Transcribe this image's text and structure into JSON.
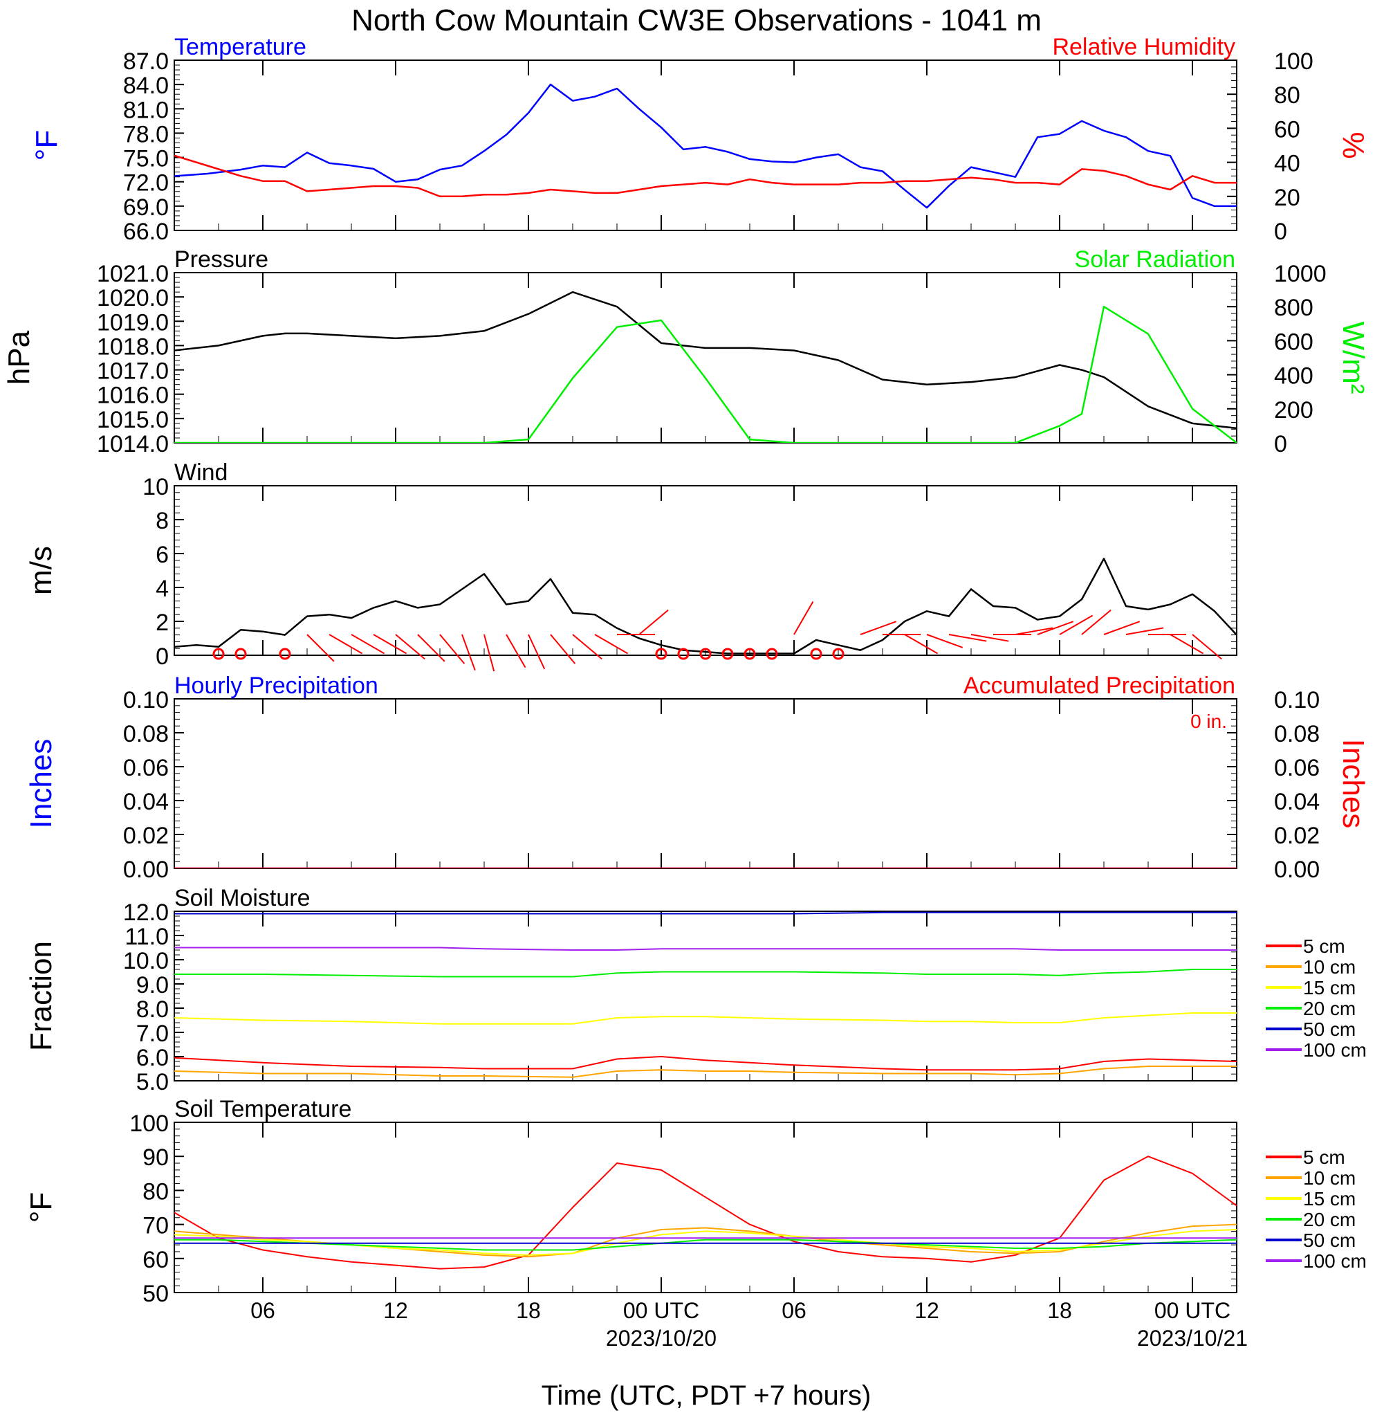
{
  "title": "North Cow Mountain CW3E Observations - 1041 m",
  "x_axis": {
    "label": "Time (UTC, PDT +7 hours)",
    "tick_labels": [
      "06",
      "12",
      "18",
      "00 UTC",
      "06",
      "12",
      "18",
      "00 UTC"
    ],
    "date_labels": [
      "2023/10/20",
      "2023/10/21"
    ],
    "range_hours_utc": [
      -22,
      26
    ]
  },
  "colors": {
    "temperature": "#0000ff",
    "humidity": "#ff0000",
    "pressure": "#000000",
    "solar": "#00ee00",
    "wind_speed": "#000000",
    "wind_barb": "#ff0000",
    "hourly_precip": "#0000ff",
    "accum_precip": "#ff0000",
    "depth_5cm": "#ff0000",
    "depth_10cm": "#ffa500",
    "depth_15cm": "#ffff00",
    "depth_20cm": "#00ee00",
    "depth_50cm": "#0000cd",
    "depth_100cm": "#a020f0"
  },
  "chart_data": [
    {
      "type": "line",
      "panel": "temperature-humidity",
      "left_title": "Temperature",
      "right_title": "Relative Humidity",
      "ylabel_left": "°F",
      "ylabel_right": "%",
      "ylim_left": [
        66,
        87
      ],
      "ylim_right": [
        0,
        100
      ],
      "y_ticks_left": [
        "87.0",
        "84.0",
        "81.0",
        "78.0",
        "75.0",
        "72.0",
        "69.0",
        "66.0"
      ],
      "y_ticks_right": [
        "100",
        "80",
        "60",
        "40",
        "20",
        "0"
      ],
      "x_hours": [
        -22,
        -20.5,
        -19,
        -18,
        -17,
        -16,
        -15,
        -14,
        -13,
        -12,
        -11,
        -10,
        -9,
        -8,
        -7,
        -6,
        -5,
        -4,
        -3,
        -2,
        -1,
        0,
        1,
        2,
        3,
        4,
        5,
        6,
        7,
        8,
        9,
        10,
        11,
        12,
        13,
        14,
        15,
        16,
        17,
        18,
        19,
        20,
        21,
        22,
        23,
        24,
        25,
        26
      ],
      "series": [
        {
          "name": "Temperature",
          "axis": "left",
          "color": "temperature",
          "values": [
            72.7,
            73,
            73.5,
            74,
            73.8,
            75.6,
            74.3,
            74,
            73.6,
            72,
            72.3,
            73.5,
            74,
            75.8,
            77.8,
            80.5,
            84,
            82,
            82.5,
            83.5,
            81,
            78.7,
            76,
            76.3,
            75.7,
            74.8,
            74.5,
            74.4,
            75,
            75.4,
            73.8,
            73.3,
            71,
            68.8,
            71.5,
            73.8,
            73.2,
            72.6,
            77.5,
            77.9,
            79.5,
            78.3,
            77.5,
            75.8,
            75.2,
            70,
            69,
            69
          ]
        },
        {
          "name": "Relative Humidity",
          "axis": "right",
          "color": "humidity",
          "values": [
            44,
            38,
            32,
            29,
            29,
            23,
            24,
            25,
            26,
            26,
            25,
            20,
            20,
            21,
            21,
            22,
            24,
            23,
            22,
            22,
            24,
            26,
            27,
            28,
            27,
            30,
            28,
            27,
            27,
            27,
            28,
            28,
            29,
            29,
            30,
            31,
            30,
            28,
            28,
            27,
            36,
            35,
            32,
            27,
            24,
            32,
            28,
            28
          ]
        }
      ]
    },
    {
      "type": "line",
      "panel": "pressure-solar",
      "left_title": "Pressure",
      "right_title": "Solar Radiation",
      "ylabel_left": "hPa",
      "ylabel_right": "W/m²",
      "ylim_left": [
        1014,
        1021
      ],
      "ylim_right": [
        0,
        1000
      ],
      "y_ticks_left": [
        "1021.0",
        "1020.0",
        "1019.0",
        "1018.0",
        "1017.0",
        "1016.0",
        "1015.0",
        "1014.0"
      ],
      "y_ticks_right": [
        "1000",
        "800",
        "600",
        "400",
        "200",
        "0"
      ],
      "x_hours": [
        -22,
        -20,
        -18,
        -17,
        -16,
        -14,
        -12,
        -10,
        -8,
        -6,
        -4,
        -2,
        0,
        2,
        4,
        6,
        8,
        10,
        12,
        14,
        16,
        18,
        19,
        20,
        22,
        24,
        26
      ],
      "series": [
        {
          "name": "Pressure",
          "axis": "left",
          "color": "pressure",
          "values": [
            1017.8,
            1018,
            1018.4,
            1018.5,
            1018.5,
            1018.4,
            1018.3,
            1018.4,
            1018.6,
            1019.3,
            1020.2,
            1019.6,
            1018.1,
            1017.9,
            1017.9,
            1017.8,
            1017.4,
            1016.6,
            1016.4,
            1016.5,
            1016.7,
            1017.2,
            1017,
            1016.7,
            1015.5,
            1014.8,
            1014.6
          ]
        },
        {
          "name": "Solar Radiation",
          "axis": "right",
          "color": "solar",
          "values": [
            0,
            0,
            0,
            0,
            0,
            0,
            0,
            0,
            0,
            20,
            380,
            680,
            720,
            380,
            20,
            0,
            0,
            0,
            0,
            0,
            0,
            100,
            170,
            800,
            640,
            200,
            0
          ]
        }
      ]
    },
    {
      "type": "line",
      "panel": "wind",
      "left_title": "Wind",
      "ylabel_left": "m/s",
      "ylim_left": [
        0,
        10
      ],
      "y_ticks_left": [
        "10",
        "8",
        "6",
        "4",
        "2",
        "0"
      ],
      "x_hours": [
        -22,
        -21,
        -20,
        -19,
        -18,
        -17,
        -16,
        -15,
        -14,
        -13,
        -12,
        -11,
        -10,
        -9,
        -8,
        -7,
        -6,
        -5,
        -4,
        -3,
        -2,
        -1,
        0,
        1,
        2,
        3,
        4,
        5,
        6,
        7,
        8,
        9,
        10,
        11,
        12,
        13,
        14,
        15,
        16,
        17,
        18,
        19,
        20,
        21,
        22,
        23,
        24,
        25,
        26
      ],
      "series": [
        {
          "name": "Wind Speed",
          "axis": "left",
          "color": "wind_speed",
          "values": [
            0.5,
            0.6,
            0.5,
            1.5,
            1.4,
            1.2,
            2.3,
            2.4,
            2.2,
            2.8,
            3.2,
            2.8,
            3.0,
            3.9,
            4.8,
            3.0,
            3.2,
            4.5,
            2.5,
            2.4,
            1.6,
            1.0,
            0.6,
            0.3,
            0.2,
            0.1,
            0.1,
            0.1,
            0.1,
            0.9,
            0.6,
            0.3,
            0.9,
            2.0,
            2.6,
            2.3,
            3.9,
            2.9,
            2.8,
            2.1,
            2.3,
            3.3,
            5.7,
            2.9,
            2.7,
            3.0,
            3.6,
            2.6,
            1.2
          ]
        }
      ],
      "barbs": {
        "color": "wind_barb",
        "calm_hours": [
          -20,
          -19,
          -17,
          0,
          1,
          2,
          3,
          4,
          5,
          7,
          8
        ],
        "barb_hours": [
          -16,
          -15,
          -14,
          -13,
          -12,
          -11,
          -10,
          -9,
          -8,
          -7,
          -6,
          -5,
          -4,
          -3,
          -2,
          -1,
          6,
          9,
          10,
          11,
          12,
          13,
          14,
          15,
          16,
          17,
          18,
          19,
          20,
          21,
          22,
          23,
          24
        ],
        "barb_angles_deg": [
          315,
          300,
          300,
          300,
          310,
          315,
          320,
          340,
          345,
          330,
          335,
          320,
          310,
          300,
          270,
          230,
          210,
          250,
          270,
          300,
          290,
          280,
          280,
          270,
          260,
          250,
          240,
          230,
          250,
          260,
          270,
          300,
          310
        ]
      }
    },
    {
      "type": "line",
      "panel": "precipitation",
      "left_title": "Hourly Precipitation",
      "right_title": "Accumulated Precipitation",
      "annotation": "0 in.",
      "ylabel_left": "Inches",
      "ylabel_right": "Inches",
      "ylim_left": [
        0,
        0.1
      ],
      "ylim_right": [
        0,
        0.1
      ],
      "y_ticks_left": [
        "0.10",
        "0.08",
        "0.06",
        "0.04",
        "0.02",
        "0.00"
      ],
      "y_ticks_right": [
        "0.10",
        "0.08",
        "0.06",
        "0.04",
        "0.02",
        "0.00"
      ],
      "x_hours": [
        -22,
        26
      ],
      "series": [
        {
          "name": "Hourly Precipitation",
          "axis": "left",
          "color": "hourly_precip",
          "values": [
            0,
            0
          ]
        },
        {
          "name": "Accumulated Precipitation",
          "axis": "right",
          "color": "accum_precip",
          "values": [
            0,
            0
          ]
        }
      ]
    },
    {
      "type": "line",
      "panel": "soil-moisture",
      "left_title": "Soil Moisture",
      "ylabel_left": "Fraction",
      "ylim_left": [
        5,
        12
      ],
      "y_ticks_left": [
        "12.0",
        "11.0",
        "10.0",
        "9.0",
        "8.0",
        "7.0",
        "6.0",
        "5.0"
      ],
      "legend": [
        "5 cm",
        "10 cm",
        "15 cm",
        "20 cm",
        "50 cm",
        "100 cm"
      ],
      "x_hours": [
        -22,
        -18,
        -14,
        -10,
        -8,
        -4,
        -2,
        0,
        2,
        4,
        6,
        10,
        12,
        14,
        16,
        18,
        20,
        22,
        24,
        26
      ],
      "series": [
        {
          "name": "5 cm",
          "axis": "left",
          "color": "depth_5cm",
          "values": [
            5.95,
            5.75,
            5.6,
            5.55,
            5.5,
            5.5,
            5.9,
            6.0,
            5.85,
            5.75,
            5.65,
            5.5,
            5.45,
            5.45,
            5.45,
            5.5,
            5.8,
            5.9,
            5.85,
            5.8
          ]
        },
        {
          "name": "10 cm",
          "axis": "left",
          "color": "depth_10cm",
          "values": [
            5.4,
            5.3,
            5.3,
            5.2,
            5.2,
            5.15,
            5.4,
            5.45,
            5.4,
            5.4,
            5.35,
            5.3,
            5.3,
            5.3,
            5.25,
            5.3,
            5.5,
            5.6,
            5.6,
            5.6
          ]
        },
        {
          "name": "15 cm",
          "axis": "left",
          "color": "depth_15cm",
          "values": [
            7.6,
            7.5,
            7.45,
            7.35,
            7.35,
            7.35,
            7.6,
            7.65,
            7.65,
            7.6,
            7.55,
            7.5,
            7.45,
            7.45,
            7.4,
            7.4,
            7.6,
            7.7,
            7.8,
            7.8
          ]
        },
        {
          "name": "20 cm",
          "axis": "left",
          "color": "depth_20cm",
          "values": [
            9.4,
            9.4,
            9.35,
            9.3,
            9.3,
            9.3,
            9.45,
            9.5,
            9.5,
            9.5,
            9.5,
            9.45,
            9.4,
            9.4,
            9.4,
            9.35,
            9.45,
            9.5,
            9.6,
            9.6
          ]
        },
        {
          "name": "50 cm",
          "axis": "left",
          "color": "depth_50cm",
          "values": [
            11.9,
            11.9,
            11.9,
            11.9,
            11.9,
            11.9,
            11.9,
            11.9,
            11.9,
            11.9,
            11.9,
            11.95,
            11.95,
            11.95,
            11.95,
            11.95,
            11.95,
            11.95,
            11.95,
            11.95
          ]
        },
        {
          "name": "100 cm",
          "axis": "left",
          "color": "depth_100cm",
          "values": [
            10.5,
            10.5,
            10.5,
            10.5,
            10.45,
            10.4,
            10.4,
            10.45,
            10.45,
            10.45,
            10.45,
            10.45,
            10.45,
            10.45,
            10.45,
            10.4,
            10.4,
            10.4,
            10.4,
            10.4
          ]
        }
      ]
    },
    {
      "type": "line",
      "panel": "soil-temperature",
      "left_title": "Soil Temperature",
      "ylabel_left": "°F",
      "ylim_left": [
        50,
        100
      ],
      "y_ticks_left": [
        "100",
        "90",
        "80",
        "70",
        "60",
        "50"
      ],
      "legend": [
        "5 cm",
        "10 cm",
        "15 cm",
        "20 cm",
        "50 cm",
        "100 cm"
      ],
      "x_hours": [
        -22,
        -20,
        -18,
        -16,
        -14,
        -12,
        -10,
        -8,
        -6,
        -4,
        -2,
        0,
        2,
        4,
        6,
        8,
        10,
        12,
        14,
        16,
        18,
        20,
        22,
        24,
        26
      ],
      "series": [
        {
          "name": "5 cm",
          "axis": "left",
          "color": "depth_5cm",
          "values": [
            73.5,
            66,
            62.5,
            60.5,
            59,
            58,
            57,
            57.5,
            61,
            75,
            88,
            86,
            78,
            70,
            65,
            62,
            60.5,
            60,
            59,
            61,
            66,
            83,
            90,
            85,
            75.5
          ]
        },
        {
          "name": "10 cm",
          "axis": "left",
          "color": "depth_10cm",
          "values": [
            68,
            67,
            66,
            65,
            64,
            63,
            62,
            61,
            60.5,
            61.5,
            66,
            68.5,
            69,
            68,
            66.5,
            65,
            64,
            63,
            62,
            61.5,
            62,
            65,
            67.5,
            69.5,
            70
          ]
        },
        {
          "name": "15 cm",
          "axis": "left",
          "color": "depth_15cm",
          "values": [
            67,
            66.5,
            65.5,
            65,
            64,
            63,
            62.5,
            61.5,
            61,
            61.5,
            64.5,
            67,
            68,
            67.5,
            66.5,
            65.5,
            64.5,
            63.5,
            63,
            62,
            62.5,
            64.5,
            66.5,
            68,
            68.5
          ]
        },
        {
          "name": "20 cm",
          "axis": "left",
          "color": "depth_20cm",
          "values": [
            65.5,
            65.5,
            65,
            64.5,
            64,
            63.5,
            63,
            62.5,
            62.5,
            62.5,
            63.5,
            64.5,
            65.5,
            65.5,
            65.5,
            65,
            64.5,
            64,
            63.5,
            63,
            63,
            63.5,
            64.5,
            65,
            65.5
          ]
        },
        {
          "name": "50 cm",
          "axis": "left",
          "color": "depth_50cm",
          "values": [
            64.5,
            64.5,
            64.5,
            64.5,
            64.5,
            64.5,
            64.5,
            64.5,
            64.5,
            64.5,
            64.5,
            64.5,
            64.5,
            64.5,
            64.5,
            64.5,
            64.5,
            64.5,
            64.5,
            64.5,
            64.5,
            64.5,
            64.5,
            64.5,
            64.5
          ]
        },
        {
          "name": "100 cm",
          "axis": "left",
          "color": "depth_100cm",
          "values": [
            66,
            66,
            66,
            66,
            66,
            66,
            66,
            66,
            66,
            66,
            66,
            66,
            66,
            66,
            66,
            66,
            66,
            66,
            66,
            66,
            66,
            66,
            66,
            66,
            66
          ]
        }
      ]
    }
  ]
}
